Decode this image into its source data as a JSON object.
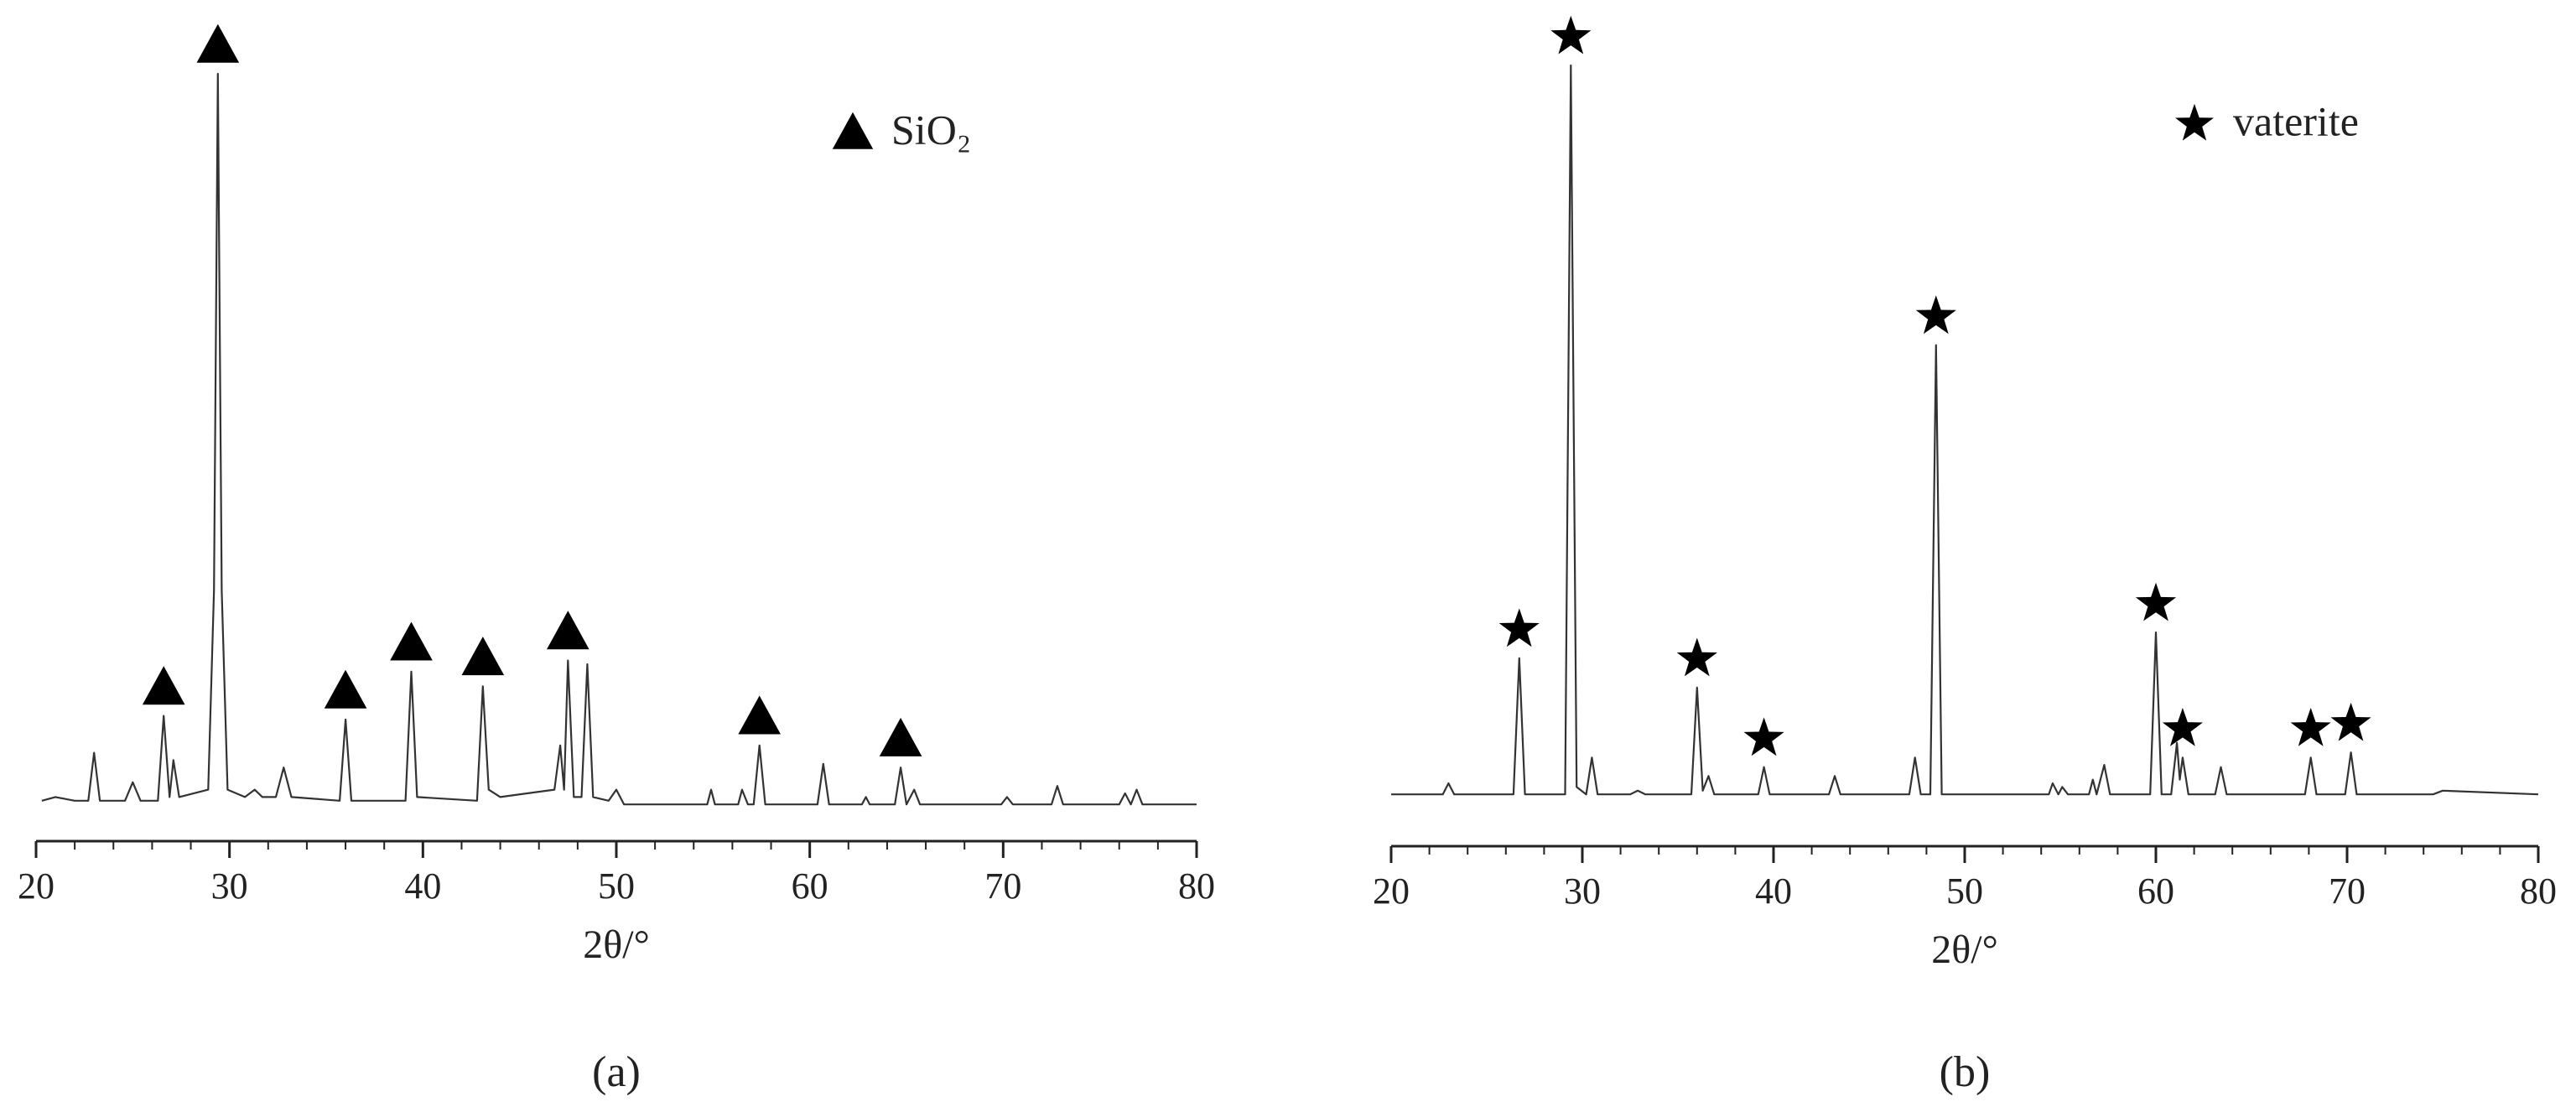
{
  "chart_data": [
    {
      "type": "line",
      "panel_label": "(a)",
      "xlabel": "2θ/°",
      "xlim": [
        20,
        80
      ],
      "ylim": [
        0,
        100
      ],
      "xticks": [
        20,
        30,
        40,
        50,
        60,
        70,
        80
      ],
      "xminorticks": [
        22,
        24,
        26,
        28,
        32,
        34,
        36,
        38,
        42,
        44,
        46,
        48,
        52,
        54,
        56,
        58,
        62,
        64,
        66,
        68,
        72,
        74,
        76,
        78
      ],
      "color": "#333333",
      "legend": "upper right",
      "x": [
        20.3,
        21,
        22,
        22.7,
        23,
        23.3,
        24.6,
        25,
        25.4,
        26.3,
        26.6,
        26.9,
        27.1,
        27.4,
        28.9,
        29.2,
        29.4,
        29.6,
        29.9,
        30.8,
        31.3,
        31.7,
        32.4,
        32.8,
        33.2,
        35.7,
        36.0,
        36.3,
        39.1,
        39.4,
        39.7,
        42.8,
        43.1,
        43.4,
        44,
        46.8,
        47.1,
        47.3,
        47.5,
        47.8,
        48.2,
        48.5,
        48.8,
        49.6,
        50,
        50.4,
        54.7,
        54.9,
        55.1,
        56.3,
        56.5,
        56.8,
        57.1,
        57.4,
        57.7,
        58,
        60.4,
        60.7,
        61,
        62.7,
        62.9,
        63.1,
        64.4,
        64.7,
        65,
        65.4,
        65.7,
        69.9,
        70.2,
        70.5,
        72.5,
        72.8,
        73.1,
        76,
        76.3,
        76.6,
        76.9,
        77.2,
        80
      ],
      "values": [
        1.5,
        2,
        1.5,
        1.5,
        8,
        1.5,
        1.5,
        4,
        1.5,
        1.5,
        13,
        2,
        7,
        2,
        3,
        30,
        100,
        30,
        3,
        2,
        3,
        2,
        2,
        6,
        2,
        1.5,
        12.5,
        1.5,
        1.5,
        19,
        2,
        1.5,
        17,
        3,
        2,
        3,
        9,
        3,
        20.5,
        2,
        2,
        20,
        2,
        1.5,
        3,
        1,
        1,
        3,
        1,
        1,
        3,
        1,
        1,
        9,
        1,
        1,
        1,
        6.5,
        1,
        1,
        2,
        1,
        1,
        6,
        1,
        3,
        1,
        1,
        2,
        1,
        1,
        3.5,
        1,
        1,
        2.5,
        1,
        3,
        1,
        1
      ],
      "markers": {
        "name": "SiO₂",
        "symbol": "triangle",
        "color": "#000000",
        "x": [
          26.6,
          29.4,
          36.0,
          39.4,
          43.1,
          47.5,
          57.4,
          64.7
        ],
        "values": [
          13,
          100,
          12.5,
          19,
          17,
          20.5,
          9,
          6
        ]
      }
    },
    {
      "type": "line",
      "panel_label": "(b)",
      "xlabel": "2θ/°",
      "xlim": [
        20,
        80
      ],
      "ylim": [
        0,
        100
      ],
      "xticks": [
        20,
        30,
        40,
        50,
        60,
        70,
        80
      ],
      "xminorticks": [
        22,
        24,
        26,
        28,
        32,
        34,
        36,
        38,
        42,
        44,
        46,
        48,
        52,
        54,
        56,
        58,
        62,
        64,
        66,
        68,
        72,
        74,
        76,
        78
      ],
      "color": "#333333",
      "legend": "upper right",
      "x": [
        20,
        22.7,
        23,
        23.3,
        26.4,
        26.7,
        27,
        29.1,
        29.4,
        29.7,
        30.2,
        30.5,
        30.8,
        32.5,
        32.9,
        33.3,
        35.7,
        36,
        36.3,
        36.6,
        36.9,
        39.2,
        39.5,
        39.8,
        42.9,
        43.2,
        43.5,
        47.1,
        47.4,
        47.7,
        48.2,
        48.5,
        48.8,
        54.4,
        54.6,
        54.9,
        55.1,
        55.4,
        56.5,
        56.7,
        56.9,
        57.3,
        57.6,
        59.7,
        60,
        60.3,
        60.8,
        61.1,
        61.25,
        61.4,
        61.7,
        63.1,
        63.4,
        63.7,
        67.8,
        68.1,
        68.4,
        69.9,
        70.2,
        70.5,
        74.5,
        75,
        80
      ],
      "values": [
        1,
        1,
        2.5,
        1,
        1,
        19.5,
        1,
        1,
        100,
        2,
        1,
        6,
        1,
        1,
        1.5,
        1,
        1,
        15.5,
        1.5,
        3.5,
        1,
        1,
        4.7,
        1,
        1,
        3.5,
        1,
        1,
        6,
        1,
        1,
        62,
        1,
        1,
        2.5,
        1,
        2,
        1,
        1,
        3,
        1,
        5,
        1,
        1,
        23,
        1,
        1,
        8,
        3,
        6,
        1,
        1,
        4.7,
        1,
        1,
        6,
        1,
        1,
        6.7,
        1,
        1,
        1.5,
        1
      ],
      "markers": {
        "name": "vaterite",
        "symbol": "star",
        "color": "#000000",
        "x": [
          26.7,
          29.4,
          36.0,
          39.5,
          48.5,
          60.0,
          61.4,
          68.1,
          70.2
        ],
        "values": [
          19.5,
          100,
          15.5,
          4.7,
          62,
          23,
          6,
          6,
          6.7
        ]
      }
    }
  ]
}
